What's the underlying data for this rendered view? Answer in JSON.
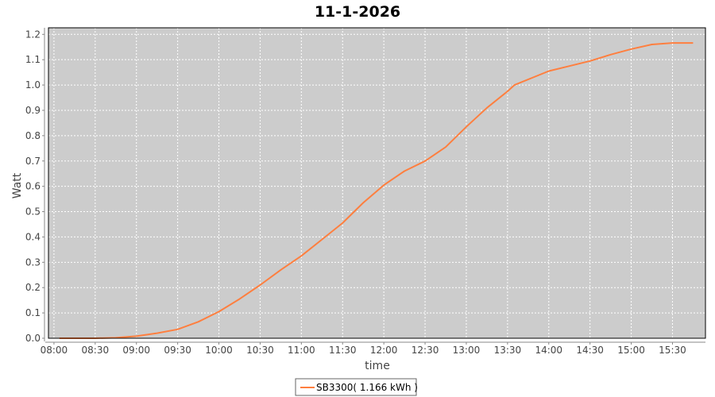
{
  "chart_data": {
    "type": "line",
    "title": "11-1-2026",
    "xlabel": "time",
    "ylabel": "Watt",
    "xlim": [
      "07:56",
      "15:54"
    ],
    "ylim": [
      0,
      1.226
    ],
    "grid": true,
    "legend_placement": "bottom",
    "background_color": "#cccccc",
    "x_ticks": [
      "08:00",
      "08:30",
      "09:00",
      "09:30",
      "10:00",
      "10:30",
      "11:00",
      "11:30",
      "12:00",
      "12:30",
      "13:00",
      "13:30",
      "14:00",
      "14:30",
      "15:00",
      "15:30"
    ],
    "y_ticks": [
      "0.0",
      "0.1",
      "0.2",
      "0.3",
      "0.4",
      "0.5",
      "0.6",
      "0.7",
      "0.8",
      "0.9",
      "1.0",
      "1.1",
      "1.2"
    ],
    "series": [
      {
        "name": "SB3300( 1.166 kWh )",
        "color": "#ff7f3f",
        "x": [
          "08:04",
          "08:30",
          "08:45",
          "09:00",
          "09:15",
          "09:30",
          "09:45",
          "10:00",
          "10:15",
          "10:30",
          "10:45",
          "11:00",
          "11:15",
          "11:30",
          "11:45",
          "12:00",
          "12:15",
          "12:30",
          "12:45",
          "13:00",
          "13:15",
          "13:30",
          "13:35",
          "14:00",
          "14:15",
          "14:30",
          "14:45",
          "15:00",
          "15:15",
          "15:30",
          "15:45"
        ],
        "y": [
          0.0,
          0.0,
          0.002,
          0.008,
          0.02,
          0.035,
          0.065,
          0.105,
          0.155,
          0.21,
          0.27,
          0.325,
          0.39,
          0.455,
          0.535,
          0.605,
          0.66,
          0.7,
          0.755,
          0.835,
          0.91,
          0.975,
          1.0,
          1.055,
          1.075,
          1.095,
          1.12,
          1.142,
          1.16,
          1.166,
          1.166
        ]
      }
    ]
  }
}
